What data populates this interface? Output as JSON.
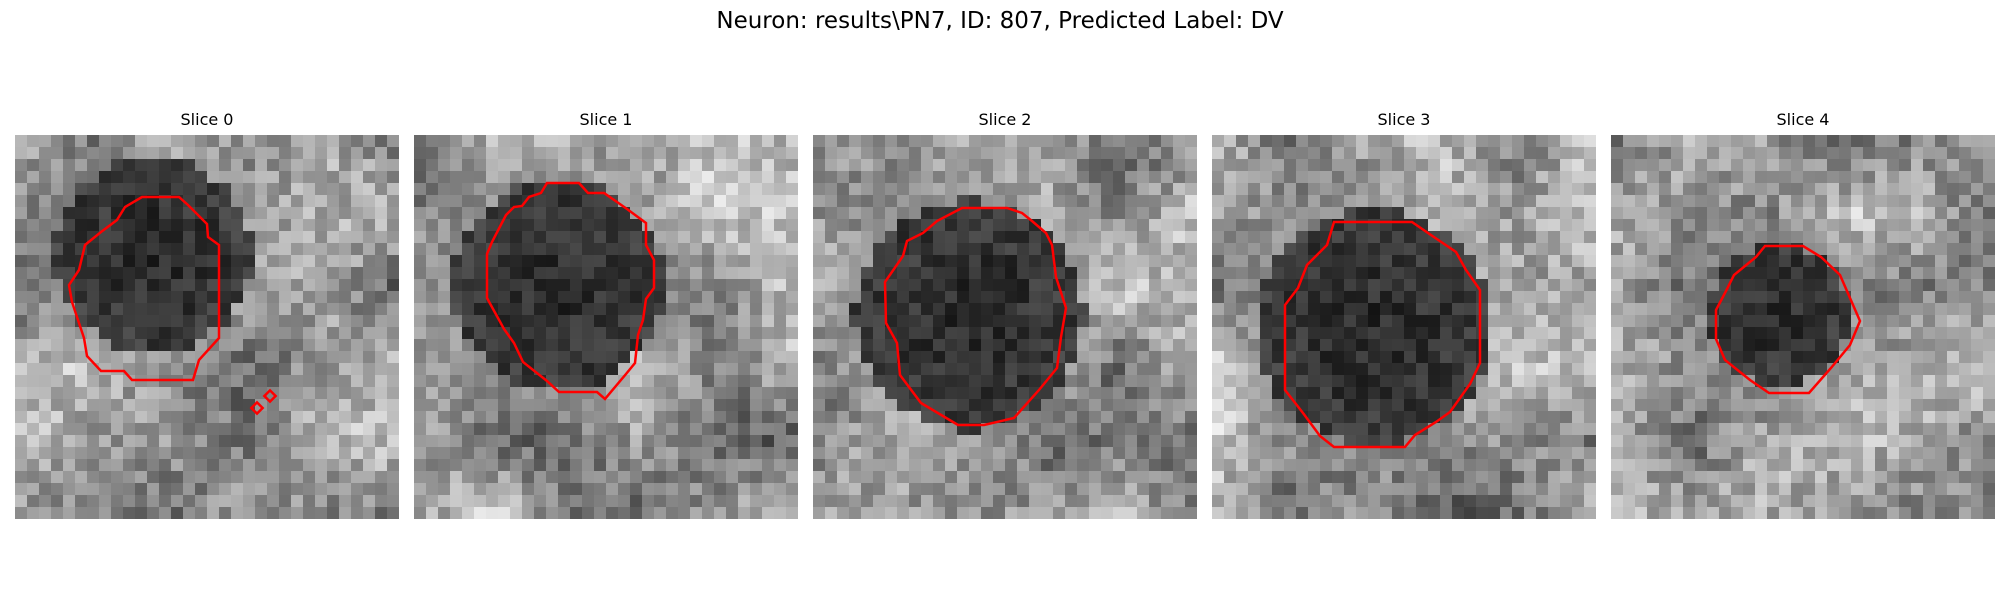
{
  "figure": {
    "title": "Neuron: results\\PN7, ID: 807, Predicted Label: DV"
  },
  "panels": [
    {
      "title": "Slice 0"
    },
    {
      "title": "Slice 1"
    },
    {
      "title": "Slice 2"
    },
    {
      "title": "Slice 3"
    },
    {
      "title": "Slice 4"
    }
  ],
  "colors": {
    "contour": "#ff0000",
    "background": "#ffffff"
  }
}
